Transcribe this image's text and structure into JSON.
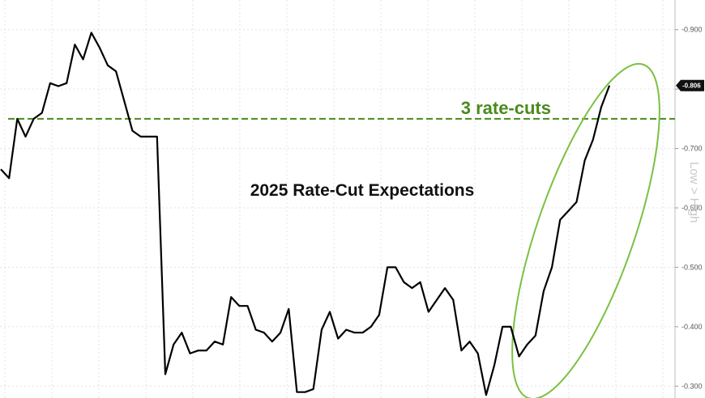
{
  "chart_data": {
    "type": "line",
    "title": "2025 Rate-Cut Expectations",
    "ylabel": "Low > High",
    "ylim": [
      0.28,
      0.95
    ],
    "yticks": [
      0.3,
      0.4,
      0.5,
      0.6,
      0.7,
      0.8,
      0.9
    ],
    "ytick_labels": [
      "0.300",
      "0.400",
      "0.500",
      "0.600",
      "0.700",
      "0.800",
      "0.900"
    ],
    "x_count": 82,
    "grid": true,
    "colors": {
      "series": "#000000",
      "reference": "#4a8a1c",
      "ellipse": "#7ac142",
      "badge": "#111111"
    },
    "reference_line": {
      "label": "3 rate-cuts",
      "y": 0.75
    },
    "last_value": {
      "label": "0.806",
      "y": 0.806
    },
    "series": [
      {
        "values": [
          0.665,
          0.65,
          0.75,
          0.72,
          0.75,
          0.76,
          0.81,
          0.805,
          0.81,
          0.875,
          0.85,
          0.895,
          0.87,
          0.84,
          0.83,
          0.78,
          0.73,
          0.72,
          0.72,
          0.72,
          0.32,
          0.37,
          0.39,
          0.355,
          0.36,
          0.36,
          0.375,
          0.37,
          0.45,
          0.435,
          0.435,
          0.395,
          0.39,
          0.375,
          0.39,
          0.43,
          0.29,
          0.29,
          0.295,
          0.395,
          0.425,
          0.38,
          0.395,
          0.39,
          0.39,
          0.4,
          0.42,
          0.5,
          0.5,
          0.475,
          0.465,
          0.475,
          0.425,
          0.445,
          0.465,
          0.445,
          0.36,
          0.375,
          0.355,
          0.285,
          0.335,
          0.4,
          0.4,
          0.35,
          0.37,
          0.385,
          0.46,
          0.5,
          0.58,
          0.595,
          0.61,
          0.68,
          0.715,
          0.77,
          0.806
        ]
      }
    ]
  }
}
